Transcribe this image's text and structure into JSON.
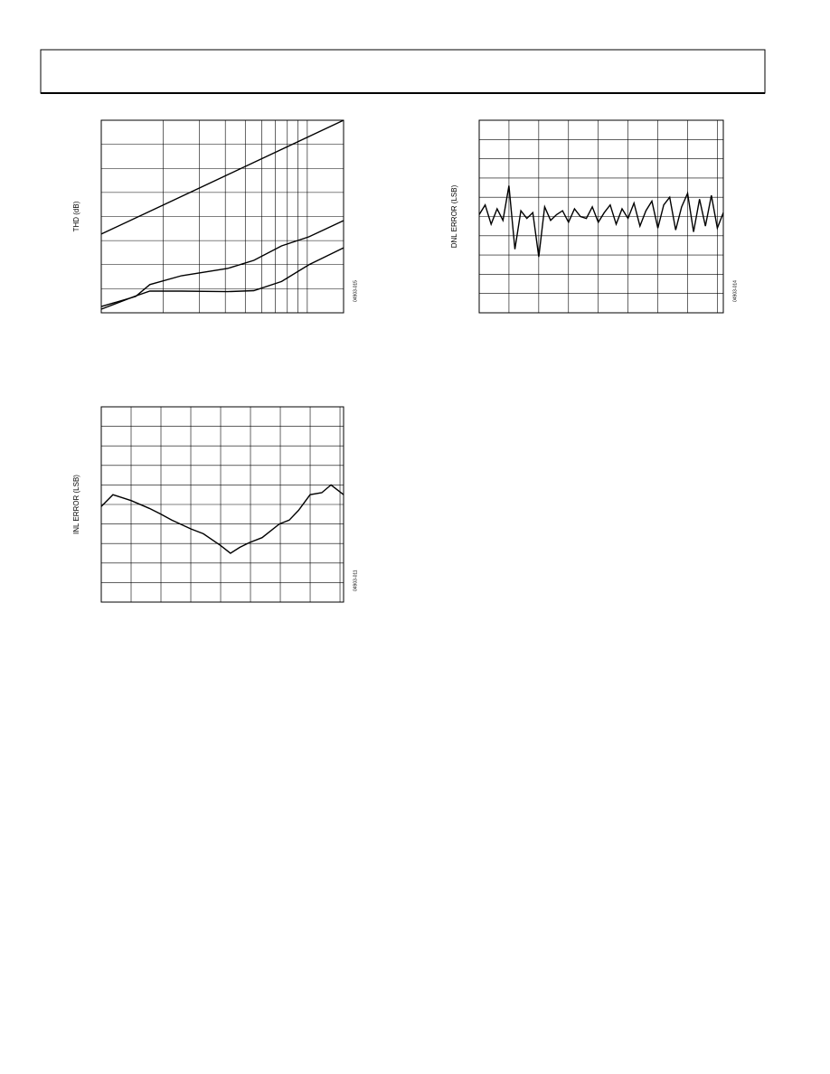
{
  "chart_data": [
    {
      "type": "line",
      "ylabel": "THD (dB)",
      "annotations": [
        "04903-015"
      ],
      "xscale": "log",
      "grid": true,
      "xlim": [
        1,
        15
      ],
      "xticks": [
        2,
        3,
        4,
        5,
        6,
        7,
        8,
        9,
        10
      ],
      "ylim": [
        0,
        8
      ],
      "yticks": [
        1,
        2,
        3,
        4,
        5,
        6,
        7
      ],
      "series": [
        {
          "color": "#000000",
          "x": [
            1,
            2,
            4,
            8,
            15
          ],
          "values": [
            3.27,
            4.48,
            5.69,
            6.9,
            8
          ]
        },
        {
          "color": "#000000",
          "x": [
            1,
            1.47,
            1.72,
            2.45,
            4.1,
            5.5,
            7.5,
            10.2,
            15
          ],
          "values": [
            0.26,
            0.68,
            1.17,
            1.54,
            1.84,
            2.18,
            2.78,
            3.16,
            3.83
          ]
        },
        {
          "color": "#000000",
          "x": [
            1,
            1.47,
            1.72,
            2.45,
            4.1,
            5.5,
            7.5,
            10.2,
            15
          ],
          "values": [
            0.15,
            0.7,
            0.9,
            0.9,
            0.88,
            0.92,
            1.3,
            2.0,
            2.7
          ]
        }
      ]
    },
    {
      "type": "line",
      "ylabel": "DNL ERROR (LSB)",
      "annotations": [
        "04903-014"
      ],
      "grid": true,
      "xlim": [
        0,
        8.2
      ],
      "xticks": [
        1,
        2,
        3,
        4,
        5,
        6,
        7,
        8
      ],
      "ylim": [
        0,
        10
      ],
      "yticks": [
        1,
        2,
        3,
        4,
        5,
        6,
        7,
        8,
        9
      ],
      "series": [
        {
          "color": "#000000",
          "x": [
            0,
            0.2,
            0.4,
            0.6,
            0.8,
            1.0,
            1.2,
            1.4,
            1.6,
            1.8,
            2.0,
            2.2,
            2.4,
            2.6,
            2.8,
            3.0,
            3.2,
            3.4,
            3.6,
            3.8,
            4.0,
            4.2,
            4.4,
            4.6,
            4.8,
            5.0,
            5.2,
            5.4,
            5.6,
            5.8,
            6.0,
            6.2,
            6.4,
            6.6,
            6.8,
            7.0,
            7.2,
            7.4,
            7.6,
            7.8,
            8.0,
            8.2
          ],
          "values": [
            5.1,
            5.6,
            4.6,
            5.4,
            4.8,
            6.6,
            3.3,
            5.3,
            4.9,
            5.2,
            2.9,
            5.5,
            4.8,
            5.1,
            5.3,
            4.7,
            5.4,
            5.0,
            4.9,
            5.5,
            4.7,
            5.2,
            5.6,
            4.6,
            5.4,
            4.9,
            5.7,
            4.5,
            5.3,
            5.8,
            4.4,
            5.6,
            6.0,
            4.3,
            5.5,
            6.2,
            4.2,
            5.9,
            4.5,
            6.1,
            4.4,
            5.2
          ]
        }
      ]
    },
    {
      "type": "line",
      "ylabel": "INL ERROR (LSB)",
      "annotations": [
        "04903-011"
      ],
      "grid": true,
      "xlim": [
        0,
        8.12
      ],
      "xticks": [
        1,
        2,
        3,
        4,
        5,
        6,
        7,
        8
      ],
      "ylim": [
        0,
        10
      ],
      "yticks": [
        1,
        2,
        3,
        4,
        5,
        6,
        7,
        8,
        9
      ],
      "series": [
        {
          "color": "#000000",
          "x": [
            0,
            0.39,
            1.0,
            1.61,
            2.0,
            2.36,
            3.0,
            3.42,
            4.0,
            4.33,
            4.64,
            4.97,
            5.39,
            5.97,
            6.3,
            6.61,
            7.0,
            7.39,
            7.7,
            8.12
          ],
          "values": [
            4.9,
            5.5,
            5.2,
            4.8,
            4.5,
            4.2,
            3.75,
            3.5,
            2.9,
            2.5,
            2.8,
            3.05,
            3.3,
            4.0,
            4.2,
            4.7,
            5.5,
            5.6,
            6.0,
            5.5
          ]
        }
      ]
    }
  ]
}
